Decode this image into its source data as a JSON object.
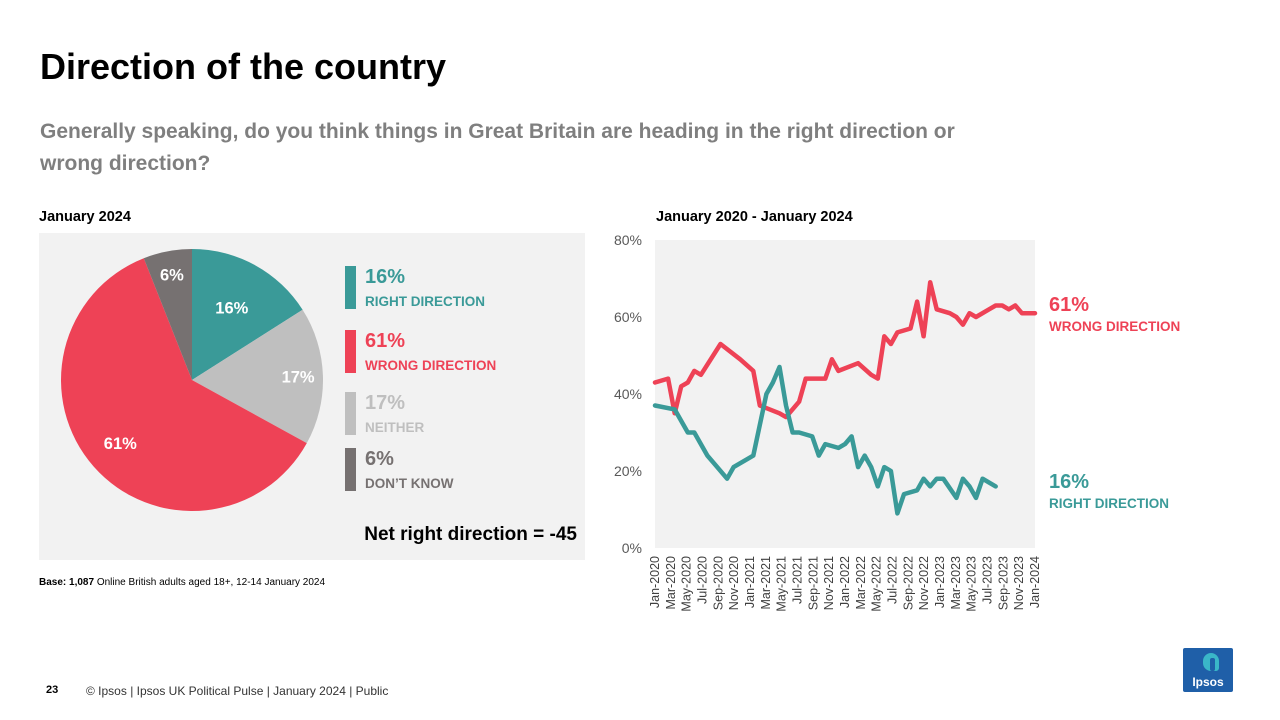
{
  "header": {
    "title": "Direction of the country",
    "subtitle": "Generally speaking, do you think things in Great Britain are heading in the right direction or wrong direction?"
  },
  "pie_section": {
    "label": "January 2024",
    "net_text": "Net right direction = -45",
    "legend": [
      {
        "pct": "16%",
        "name": "RIGHT DIRECTION",
        "color": "#3a9a98"
      },
      {
        "pct": "61%",
        "name": "WRONG DIRECTION",
        "color": "#ee4256"
      },
      {
        "pct": "17%",
        "name": "NEITHER",
        "color": "#bfbfbf"
      },
      {
        "pct": "6%",
        "name": "DON’T KNOW",
        "color": "#767171"
      }
    ]
  },
  "line_section": {
    "label": "January 2020 - January 2024",
    "right_end": {
      "pct": "16%",
      "name": "RIGHT DIRECTION"
    },
    "wrong_end": {
      "pct": "61%",
      "name": "WRONG DIRECTION"
    }
  },
  "base_note": {
    "bold": "Base:",
    "bold2": "1,087",
    "text": " Online British adults aged 18+, 12-14 January 2024"
  },
  "footer": {
    "page": "23",
    "text": "© Ipsos | Ipsos UK Political Pulse | January 2024 | Public",
    "logo": "Ipsos"
  },
  "chart_data": [
    {
      "type": "pie",
      "title": "January 2024",
      "categories": [
        "Right direction",
        "Neither",
        "Wrong direction",
        "Don't know"
      ],
      "values": [
        16,
        17,
        61,
        6
      ],
      "labels": [
        "16%",
        "17%",
        "61%",
        "6%"
      ],
      "colors": [
        "#3a9a98",
        "#bfbfbf",
        "#ee4256",
        "#767171"
      ]
    },
    {
      "type": "line",
      "title": "January 2020 - January 2024",
      "ylim": [
        0,
        80
      ],
      "yticks": [
        "0%",
        "20%",
        "40%",
        "60%",
        "80%"
      ],
      "xticks": [
        "Jan-2020",
        "Mar-2020",
        "May-2020",
        "Jul-2020",
        "Sep-2020",
        "Nov-2020",
        "Jan-2021",
        "Mar-2021",
        "May-2021",
        "Jul-2021",
        "Sep-2021",
        "Nov-2021",
        "Jan-2022",
        "Mar-2022",
        "May-2022",
        "Jul-2022",
        "Sep-2022",
        "Nov-2022",
        "Jan-2023",
        "Mar-2023",
        "May-2023",
        "Jul-2023",
        "Sep-2023",
        "Nov-2023",
        "Jan-2024"
      ],
      "series": [
        {
          "name": "WRONG DIRECTION",
          "color": "#ee4256",
          "points": [
            [
              0,
              43
            ],
            [
              2,
              44
            ],
            [
              3,
              35
            ],
            [
              4,
              42
            ],
            [
              5,
              43
            ],
            [
              6,
              46
            ],
            [
              7,
              45
            ],
            [
              10,
              53
            ],
            [
              13,
              49
            ],
            [
              15,
              46
            ],
            [
              16,
              37
            ],
            [
              19,
              35
            ],
            [
              20,
              34
            ],
            [
              22,
              38
            ],
            [
              23,
              44
            ],
            [
              26,
              44
            ],
            [
              27,
              49
            ],
            [
              28,
              46
            ],
            [
              31,
              48
            ],
            [
              33,
              45
            ],
            [
              34,
              44
            ],
            [
              35,
              55
            ],
            [
              36,
              53
            ],
            [
              37,
              56
            ],
            [
              39,
              57
            ],
            [
              40,
              64
            ],
            [
              41,
              55
            ],
            [
              42,
              69
            ],
            [
              43,
              62
            ],
            [
              45,
              61
            ],
            [
              46,
              60
            ],
            [
              47,
              58
            ],
            [
              48,
              61
            ],
            [
              49,
              60
            ],
            [
              51,
              62
            ],
            [
              52,
              63
            ],
            [
              53,
              63
            ],
            [
              54,
              62
            ],
            [
              55,
              63
            ],
            [
              56,
              61
            ],
            [
              58,
              61
            ]
          ]
        },
        {
          "name": "RIGHT DIRECTION",
          "color": "#3a9a98",
          "points": [
            [
              0,
              37
            ],
            [
              3,
              36
            ],
            [
              4,
              33
            ],
            [
              5,
              30
            ],
            [
              6,
              30
            ],
            [
              8,
              24
            ],
            [
              9,
              22
            ],
            [
              11,
              18
            ],
            [
              12,
              21
            ],
            [
              14,
              23
            ],
            [
              15,
              24
            ],
            [
              17,
              40
            ],
            [
              18,
              43
            ],
            [
              19,
              47
            ],
            [
              20,
              37
            ],
            [
              21,
              30
            ],
            [
              22,
              30
            ],
            [
              24,
              29
            ],
            [
              25,
              24
            ],
            [
              26,
              27
            ],
            [
              28,
              26
            ],
            [
              29,
              27
            ],
            [
              30,
              29
            ],
            [
              31,
              21
            ],
            [
              32,
              24
            ],
            [
              33,
              21
            ],
            [
              34,
              16
            ],
            [
              35,
              21
            ],
            [
              36,
              20
            ],
            [
              37,
              9
            ],
            [
              38,
              14
            ],
            [
              40,
              15
            ],
            [
              41,
              18
            ],
            [
              42,
              16
            ],
            [
              43,
              18
            ],
            [
              44,
              18
            ],
            [
              46,
              13
            ],
            [
              47,
              18
            ],
            [
              48,
              16
            ],
            [
              49,
              13
            ],
            [
              50,
              18
            ],
            [
              51,
              17
            ],
            [
              52,
              16
            ]
          ]
        }
      ]
    }
  ]
}
